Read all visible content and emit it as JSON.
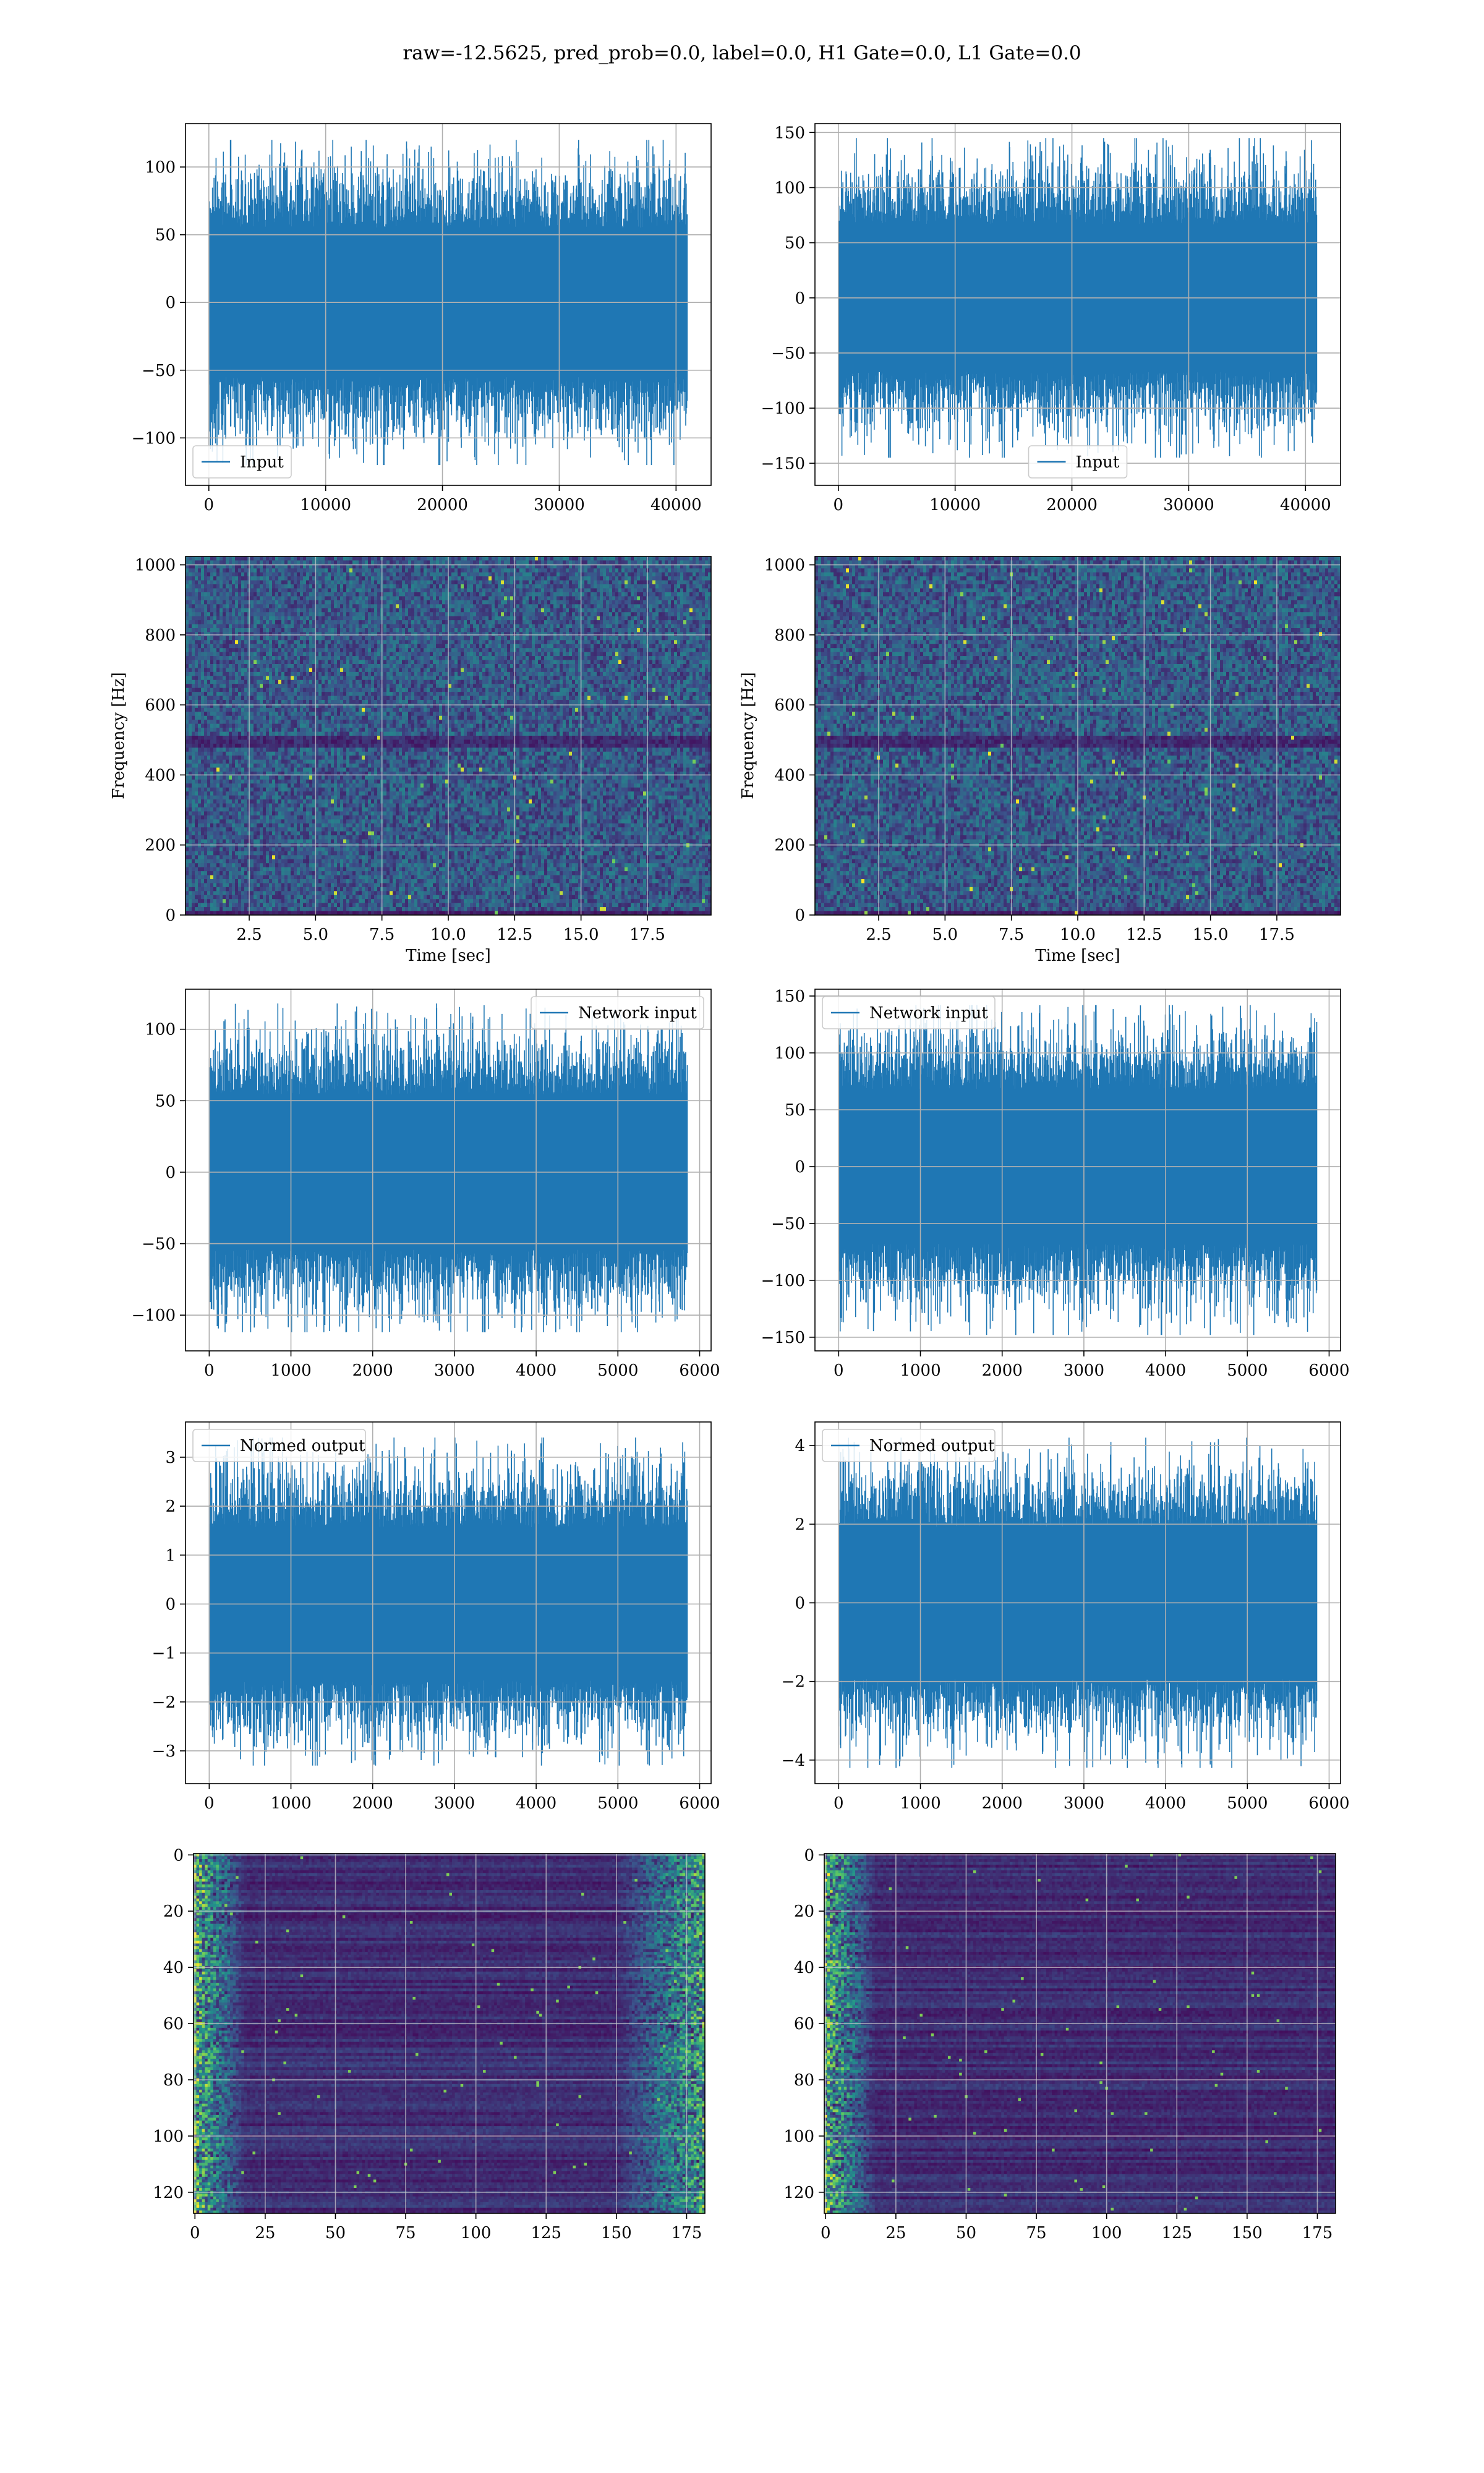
{
  "figure": {
    "title": "raw=-12.5625, pred_prob=0.0, label=0.0, H1 Gate=0.0, L1 Gate=0.0"
  },
  "colors": {
    "line": "#1f77b4",
    "grid": "#b0b0b0",
    "viridis_low": "#440154",
    "viridis_mid": "#21918c",
    "viridis_high": "#fde725"
  },
  "chart_data": [
    {
      "id": "input-left",
      "type": "line",
      "series": [
        {
          "name": "Input",
          "n_points": 40960,
          "amplitude_range": [
            -120,
            120
          ]
        }
      ],
      "x": {
        "ticks": [
          0,
          10000,
          20000,
          30000,
          40000
        ],
        "tick_labels": [
          "0",
          "10000",
          "20000",
          "30000",
          "40000"
        ],
        "lim": [
          -2000,
          43000
        ]
      },
      "y": {
        "ticks": [
          -100,
          -50,
          0,
          50,
          100
        ],
        "tick_labels": [
          "−100",
          "−50",
          "0",
          "50",
          "100"
        ],
        "lim": [
          -135,
          132
        ]
      },
      "xlabel": "",
      "ylabel": "",
      "legend": "lower left",
      "grid": true
    },
    {
      "id": "input-right",
      "type": "line",
      "series": [
        {
          "name": "Input",
          "n_points": 40960,
          "amplitude_range": [
            -145,
            145
          ]
        }
      ],
      "x": {
        "ticks": [
          0,
          10000,
          20000,
          30000,
          40000
        ],
        "tick_labels": [
          "0",
          "10000",
          "20000",
          "30000",
          "40000"
        ],
        "lim": [
          -2000,
          43000
        ]
      },
      "y": {
        "ticks": [
          -150,
          -100,
          -50,
          0,
          50,
          100,
          150
        ],
        "tick_labels": [
          "−150",
          "−100",
          "−50",
          "0",
          "50",
          "100",
          "150"
        ],
        "lim": [
          -170,
          158
        ]
      },
      "xlabel": "",
      "ylabel": "",
      "legend": "lower center",
      "grid": true
    },
    {
      "id": "spectrogram-left",
      "type": "heatmap",
      "colormap": "viridis",
      "x": {
        "ticks": [
          2.5,
          5.0,
          7.5,
          10.0,
          12.5,
          15.0,
          17.5
        ],
        "tick_labels": [
          "2.5",
          "5.0",
          "7.5",
          "10.0",
          "12.5",
          "15.0",
          "17.5"
        ],
        "lim": [
          0.1,
          19.9
        ]
      },
      "y": {
        "ticks": [
          0,
          200,
          400,
          600,
          800,
          1000
        ],
        "tick_labels": [
          "0",
          "200",
          "400",
          "600",
          "800",
          "1000"
        ],
        "lim": [
          0,
          1024
        ]
      },
      "xlabel": "Time [sec]",
      "ylabel": "Frequency [Hz]",
      "grid": true
    },
    {
      "id": "spectrogram-right",
      "type": "heatmap",
      "colormap": "viridis",
      "x": {
        "ticks": [
          2.5,
          5.0,
          7.5,
          10.0,
          12.5,
          15.0,
          17.5
        ],
        "tick_labels": [
          "2.5",
          "5.0",
          "7.5",
          "10.0",
          "12.5",
          "15.0",
          "17.5"
        ],
        "lim": [
          0.1,
          19.9
        ]
      },
      "y": {
        "ticks": [
          0,
          200,
          400,
          600,
          800,
          1000
        ],
        "tick_labels": [
          "0",
          "200",
          "400",
          "600",
          "800",
          "1000"
        ],
        "lim": [
          0,
          1024
        ]
      },
      "xlabel": "Time [sec]",
      "ylabel": "Frequency [Hz]",
      "grid": true
    },
    {
      "id": "network-input-left",
      "type": "line",
      "series": [
        {
          "name": "Network input",
          "n_points": 5850,
          "amplitude_range": [
            -112,
            118
          ]
        }
      ],
      "x": {
        "ticks": [
          0,
          1000,
          2000,
          3000,
          4000,
          5000,
          6000
        ],
        "tick_labels": [
          "0",
          "1000",
          "2000",
          "3000",
          "4000",
          "5000",
          "6000"
        ],
        "lim": [
          -290,
          6140
        ]
      },
      "y": {
        "ticks": [
          -100,
          -50,
          0,
          50,
          100
        ],
        "tick_labels": [
          "−100",
          "−50",
          "0",
          "50",
          "100"
        ],
        "lim": [
          -125,
          128
        ]
      },
      "xlabel": "",
      "ylabel": "",
      "legend": "upper right",
      "grid": true
    },
    {
      "id": "network-input-right",
      "type": "line",
      "series": [
        {
          "name": "Network input",
          "n_points": 5850,
          "amplitude_range": [
            -148,
            142
          ]
        }
      ],
      "x": {
        "ticks": [
          0,
          1000,
          2000,
          3000,
          4000,
          5000,
          6000
        ],
        "tick_labels": [
          "0",
          "1000",
          "2000",
          "3000",
          "4000",
          "5000",
          "6000"
        ],
        "lim": [
          -290,
          6140
        ]
      },
      "y": {
        "ticks": [
          -150,
          -100,
          -50,
          0,
          50,
          100,
          150
        ],
        "tick_labels": [
          "−150",
          "−100",
          "−50",
          "0",
          "50",
          "100",
          "150"
        ],
        "lim": [
          -162,
          156
        ]
      },
      "xlabel": "",
      "ylabel": "",
      "legend": "upper left",
      "grid": true
    },
    {
      "id": "normed-output-left",
      "type": "line",
      "series": [
        {
          "name": "Normed output",
          "n_points": 5850,
          "amplitude_range": [
            -3.3,
            3.4
          ]
        }
      ],
      "x": {
        "ticks": [
          0,
          1000,
          2000,
          3000,
          4000,
          5000,
          6000
        ],
        "tick_labels": [
          "0",
          "1000",
          "2000",
          "3000",
          "4000",
          "5000",
          "6000"
        ],
        "lim": [
          -290,
          6140
        ]
      },
      "y": {
        "ticks": [
          -3,
          -2,
          -1,
          0,
          1,
          2,
          3
        ],
        "tick_labels": [
          "−3",
          "−2",
          "−1",
          "0",
          "1",
          "2",
          "3"
        ],
        "lim": [
          -3.67,
          3.72
        ]
      },
      "xlabel": "",
      "ylabel": "",
      "legend": "upper left",
      "grid": true
    },
    {
      "id": "normed-output-right",
      "type": "line",
      "series": [
        {
          "name": "Normed output",
          "n_points": 5850,
          "amplitude_range": [
            -4.2,
            4.2
          ]
        }
      ],
      "x": {
        "ticks": [
          0,
          1000,
          2000,
          3000,
          4000,
          5000,
          6000
        ],
        "tick_labels": [
          "0",
          "1000",
          "2000",
          "3000",
          "4000",
          "5000",
          "6000"
        ],
        "lim": [
          -290,
          6140
        ]
      },
      "y": {
        "ticks": [
          -4,
          -2,
          0,
          2,
          4
        ],
        "tick_labels": [
          "−4",
          "−2",
          "0",
          "2",
          "4"
        ],
        "lim": [
          -4.6,
          4.6
        ]
      },
      "xlabel": "",
      "ylabel": "",
      "legend": "upper left",
      "grid": true
    },
    {
      "id": "feature-map-left",
      "type": "heatmap",
      "colormap": "viridis",
      "x": {
        "ticks": [
          0,
          25,
          50,
          75,
          100,
          125,
          150,
          175
        ],
        "tick_labels": [
          "0",
          "25",
          "50",
          "75",
          "100",
          "125",
          "150",
          "175"
        ],
        "lim": [
          -0.5,
          181.5
        ]
      },
      "y": {
        "ticks": [
          0,
          20,
          40,
          60,
          80,
          100,
          120
        ],
        "tick_labels": [
          "0",
          "20",
          "40",
          "60",
          "80",
          "100",
          "120"
        ],
        "lim": [
          127.5,
          -0.5
        ],
        "inverted": true
      },
      "xlabel": "",
      "ylabel": "",
      "grid": true
    },
    {
      "id": "feature-map-right",
      "type": "heatmap",
      "colormap": "viridis",
      "x": {
        "ticks": [
          0,
          25,
          50,
          75,
          100,
          125,
          150,
          175
        ],
        "tick_labels": [
          "0",
          "25",
          "50",
          "75",
          "100",
          "125",
          "150",
          "175"
        ],
        "lim": [
          -0.5,
          181.5
        ]
      },
      "y": {
        "ticks": [
          0,
          20,
          40,
          60,
          80,
          100,
          120
        ],
        "tick_labels": [
          "0",
          "20",
          "40",
          "60",
          "80",
          "100",
          "120"
        ],
        "lim": [
          127.5,
          -0.5
        ],
        "inverted": true
      },
      "xlabel": "",
      "ylabel": "",
      "grid": true
    }
  ]
}
